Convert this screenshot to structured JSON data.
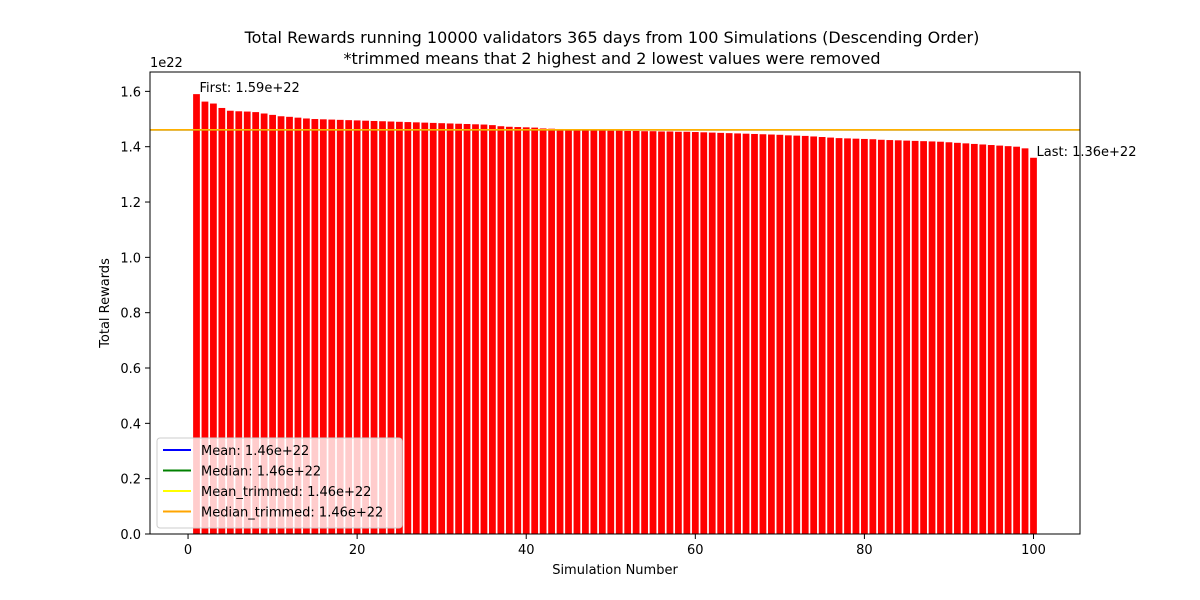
{
  "chart_data": {
    "type": "bar",
    "title_line1": "Total Rewards running 10000 validators 365 days from 100 Simulations (Descending Order)",
    "title_line2": "*trimmed means that 2 highest and 2 lowest values were removed",
    "xlabel": "Simulation Number",
    "ylabel": "Total Rewards",
    "y_offset_label": "1e22",
    "xlim": [
      -4.5,
      105.5
    ],
    "ylim": [
      0,
      1.67
    ],
    "xticks": [
      0,
      20,
      40,
      60,
      80,
      100
    ],
    "yticks": [
      0.0,
      0.2,
      0.4,
      0.6,
      0.8,
      1.0,
      1.2,
      1.4,
      1.6
    ],
    "x": [
      1,
      2,
      3,
      4,
      5,
      6,
      7,
      8,
      9,
      10,
      11,
      12,
      13,
      14,
      15,
      16,
      17,
      18,
      19,
      20,
      21,
      22,
      23,
      24,
      25,
      26,
      27,
      28,
      29,
      30,
      31,
      32,
      33,
      34,
      35,
      36,
      37,
      38,
      39,
      40,
      41,
      42,
      43,
      44,
      45,
      46,
      47,
      48,
      49,
      50,
      51,
      52,
      53,
      54,
      55,
      56,
      57,
      58,
      59,
      60,
      61,
      62,
      63,
      64,
      65,
      66,
      67,
      68,
      69,
      70,
      71,
      72,
      73,
      74,
      75,
      76,
      77,
      78,
      79,
      80,
      81,
      82,
      83,
      84,
      85,
      86,
      87,
      88,
      89,
      90,
      91,
      92,
      93,
      94,
      95,
      96,
      97,
      98,
      99,
      100
    ],
    "values": [
      1.59,
      1.563,
      1.556,
      1.54,
      1.53,
      1.528,
      1.527,
      1.525,
      1.52,
      1.515,
      1.51,
      1.508,
      1.505,
      1.502,
      1.5,
      1.499,
      1.498,
      1.497,
      1.496,
      1.495,
      1.494,
      1.493,
      1.492,
      1.491,
      1.49,
      1.489,
      1.488,
      1.487,
      1.486,
      1.485,
      1.484,
      1.483,
      1.482,
      1.481,
      1.48,
      1.478,
      1.474,
      1.472,
      1.471,
      1.47,
      1.469,
      1.466,
      1.465,
      1.464,
      1.463,
      1.462,
      1.461,
      1.46,
      1.459,
      1.458,
      1.458,
      1.457,
      1.457,
      1.456,
      1.456,
      1.455,
      1.455,
      1.454,
      1.454,
      1.453,
      1.452,
      1.451,
      1.45,
      1.449,
      1.448,
      1.447,
      1.446,
      1.445,
      1.444,
      1.443,
      1.441,
      1.44,
      1.439,
      1.437,
      1.435,
      1.433,
      1.431,
      1.43,
      1.429,
      1.428,
      1.427,
      1.425,
      1.424,
      1.423,
      1.422,
      1.421,
      1.42,
      1.419,
      1.418,
      1.416,
      1.414,
      1.412,
      1.41,
      1.408,
      1.406,
      1.404,
      1.402,
      1.4,
      1.394,
      1.36
    ],
    "bar_color": "#ff0000",
    "reference_lines": [
      {
        "name": "Mean: 1.46e+22",
        "value": 1.4614,
        "color": "#0000ff"
      },
      {
        "name": "Median: 1.46e+22",
        "value": 1.4608,
        "color": "#008000"
      },
      {
        "name": "Mean_trimmed: 1.46e+22",
        "value": 1.4612,
        "color": "#ffff00"
      },
      {
        "name": "Median_trimmed: 1.46e+22",
        "value": 1.4606,
        "color": "#ffa500"
      }
    ],
    "annotations": [
      {
        "text": "First: 1.59e+22",
        "x": 1,
        "y": 1.59
      },
      {
        "text": "Last: 1.36e+22",
        "x": 100,
        "y": 1.36
      }
    ],
    "legend_position": "lower-left",
    "grid": false
  }
}
